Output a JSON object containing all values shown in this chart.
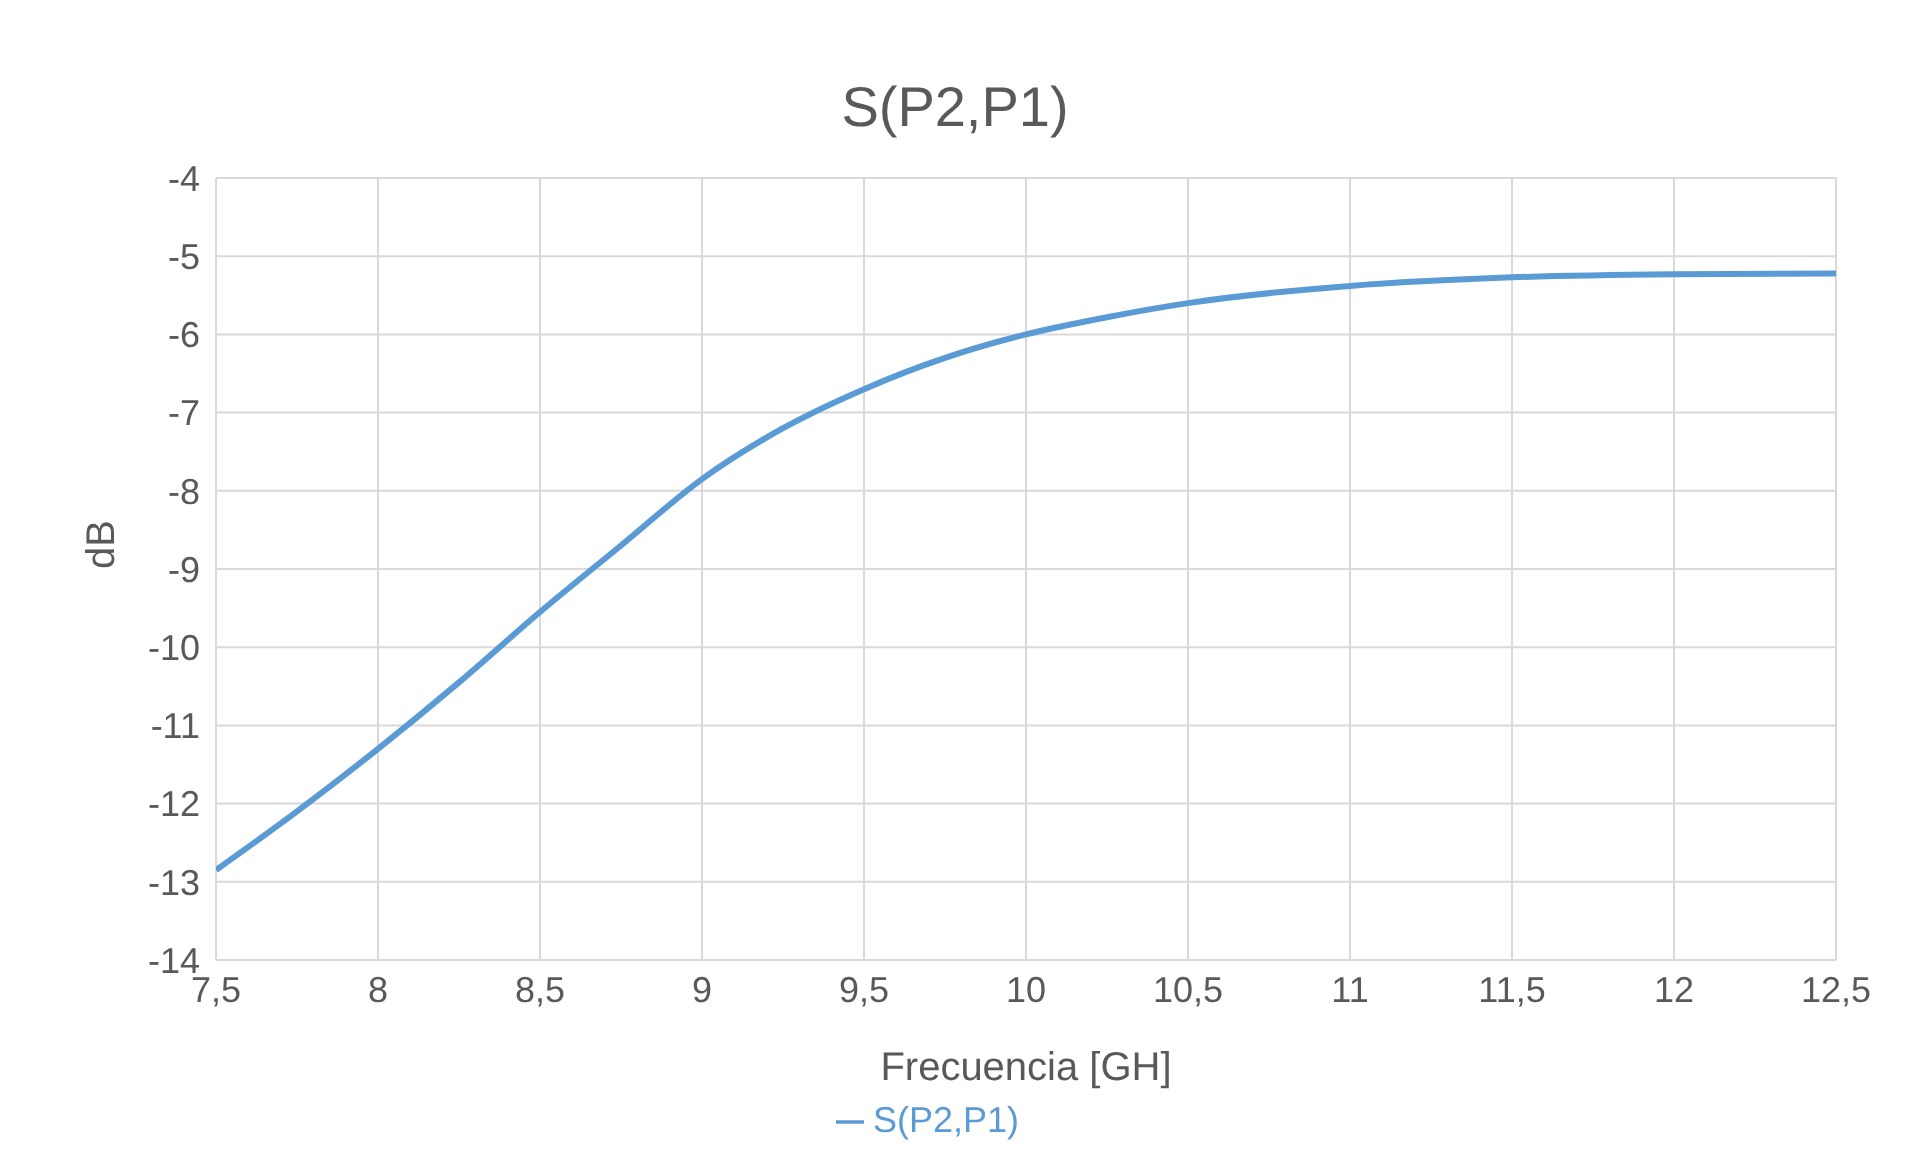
{
  "chart_data": {
    "type": "line",
    "title": "S(P2,P1)",
    "xlabel": "Frecuencia [GH]",
    "ylabel": "dB",
    "x": [
      7.5,
      7.75,
      8,
      8.25,
      8.5,
      8.75,
      9,
      9.25,
      9.5,
      9.75,
      10,
      10.25,
      10.5,
      11,
      11.5,
      12,
      12.5
    ],
    "series": [
      {
        "name": "S(P2,P1)",
        "color": "#5b9bd5",
        "values": [
          -12.85,
          -12.1,
          -11.3,
          -10.45,
          -9.55,
          -8.7,
          -7.85,
          -7.2,
          -6.7,
          -6.3,
          -6.0,
          -5.78,
          -5.6,
          -5.38,
          -5.27,
          -5.23,
          -5.22
        ]
      }
    ],
    "xlim": [
      7.5,
      12.5
    ],
    "xticks": [
      {
        "value": 7.5,
        "label": "7,5"
      },
      8,
      {
        "value": 8.5,
        "label": "8,5"
      },
      9,
      {
        "value": 9.5,
        "label": "9,5"
      },
      10,
      {
        "value": 10.5,
        "label": "10,5"
      },
      11,
      {
        "value": 11.5,
        "label": "11,5"
      },
      12,
      {
        "value": 12.5,
        "label": "12,5"
      }
    ],
    "ylim": [
      -14,
      -4
    ],
    "yticks": [
      -14,
      -13,
      -12,
      -11,
      -10,
      -9,
      -8,
      -7,
      -6,
      -5,
      -4
    ],
    "grid": true,
    "legend": "bottom",
    "marker": "none",
    "line_style": "solid"
  }
}
